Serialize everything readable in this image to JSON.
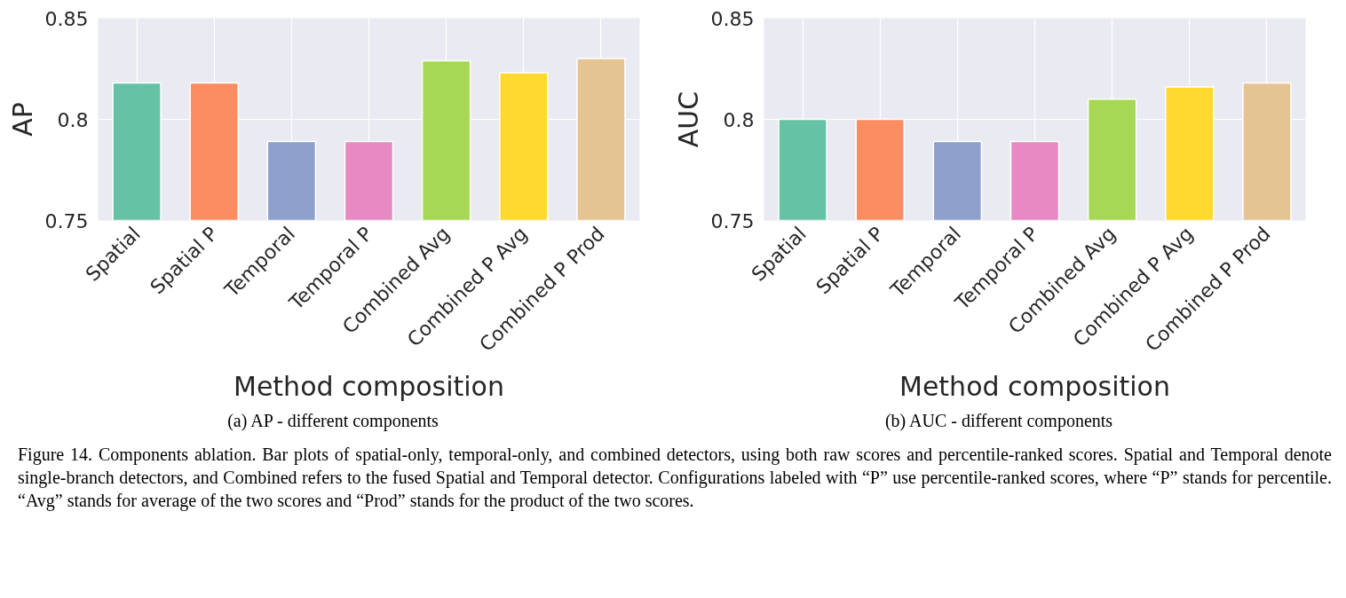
{
  "chart_data": [
    {
      "type": "bar",
      "xlabel": "Method composition",
      "ylabel": "AP",
      "categories": [
        "Spatial",
        "Spatial P",
        "Temporal",
        "Temporal P",
        "Combined Avg",
        "Combined P Avg",
        "Combined P Prod"
      ],
      "values": [
        0.818,
        0.818,
        0.789,
        0.789,
        0.829,
        0.823,
        0.83
      ],
      "colors": [
        "#66c2a5",
        "#fc8d62",
        "#8da0cb",
        "#e78ac3",
        "#a6d854",
        "#ffd92f",
        "#e5c494"
      ],
      "ylim": [
        0.75,
        0.85
      ],
      "yticks": [
        0.75,
        0.8,
        0.85
      ],
      "grid": true,
      "annotations": [
        "(a) AP - different components",
        "Figure 14. Components ablation. Bar plots of spatial-only, temporal-only, and combined detectors, using both raw scores and percentile-ranked scores.  Spatial and Temporal denote single-branch detectors, and Combined refers to the fused Spatial and Temporal detector. Configurations labeled with “P” use percentile-ranked scores, where “P” stands for percentile. “Avg” stands for average of the two scores and “Prod” stands for the product of the two scores."
      ]
    },
    {
      "type": "bar",
      "xlabel": "Method composition",
      "ylabel": "AUC",
      "categories": [
        "Spatial",
        "Spatial P",
        "Temporal",
        "Temporal P",
        "Combined Avg",
        "Combined P Avg",
        "Combined P Prod"
      ],
      "values": [
        0.8,
        0.8,
        0.789,
        0.789,
        0.81,
        0.816,
        0.818
      ],
      "colors": [
        "#66c2a5",
        "#fc8d62",
        "#8da0cb",
        "#e78ac3",
        "#a6d854",
        "#ffd92f",
        "#e5c494"
      ],
      "ylim": [
        0.75,
        0.85
      ],
      "yticks": [
        0.75,
        0.8,
        0.85
      ],
      "grid": true,
      "annotations": [
        "(b) AUC - different components"
      ]
    }
  ]
}
